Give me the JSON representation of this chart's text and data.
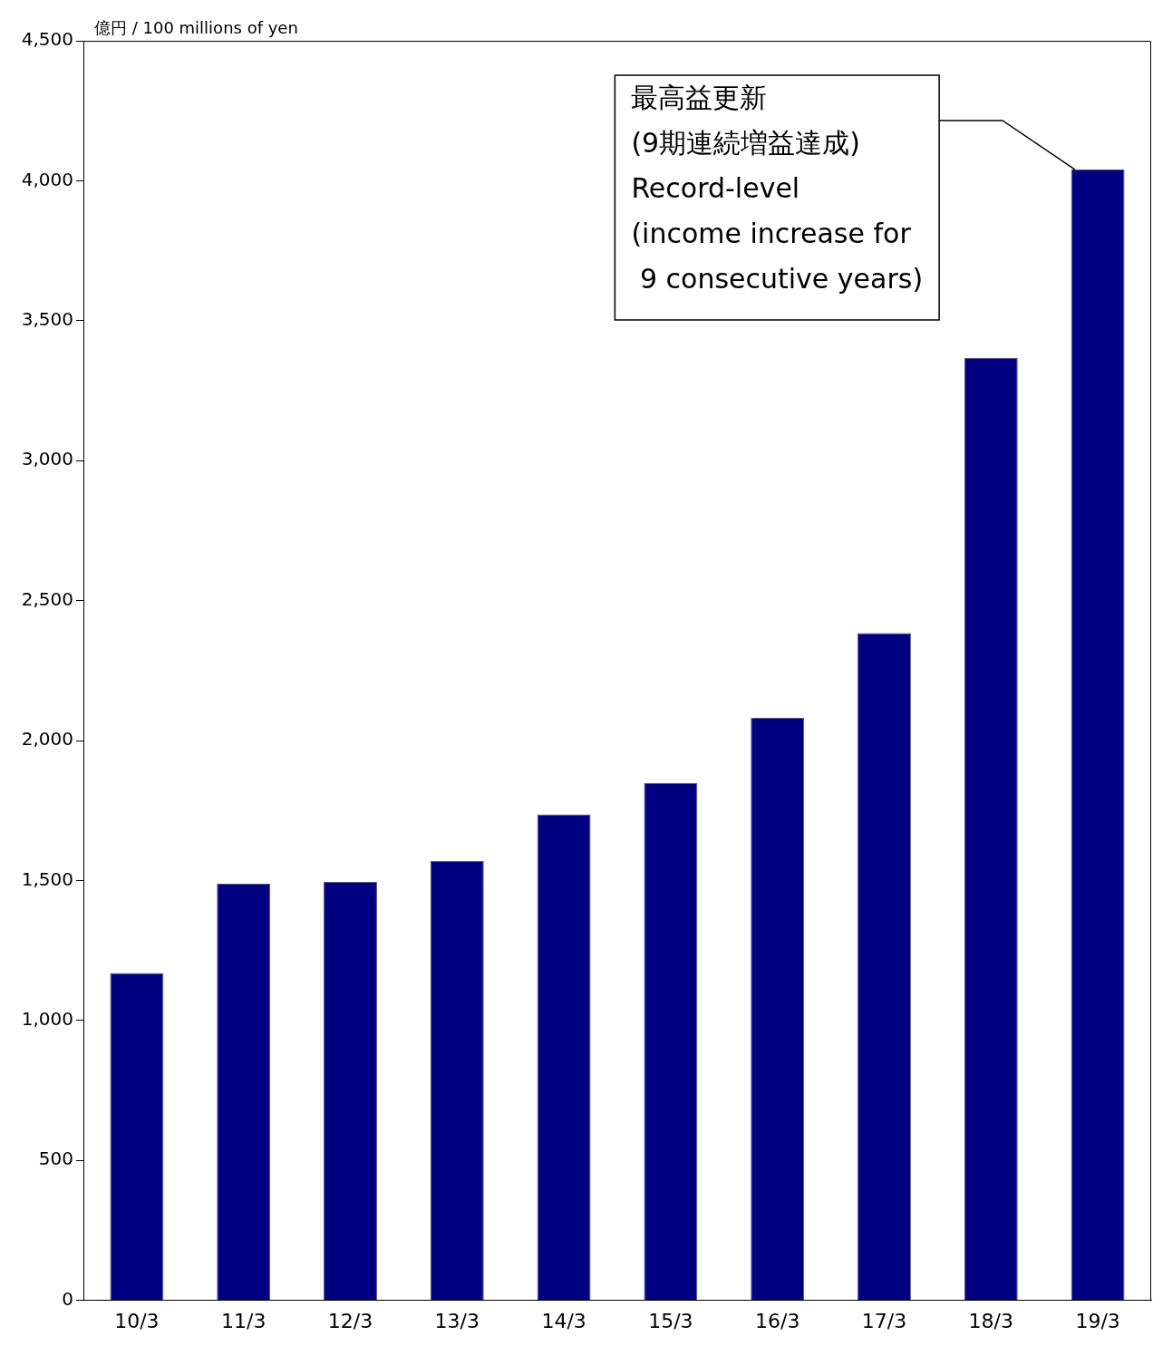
{
  "chart_data": {
    "type": "bar",
    "ylabel": "億円 / 100 millions of yen",
    "categories": [
      "10/3",
      "11/3",
      "12/3",
      "13/3",
      "14/3",
      "15/3",
      "16/3",
      "17/3",
      "18/3",
      "19/3"
    ],
    "values": [
      1169,
      1488,
      1495,
      1569,
      1736,
      1849,
      2081,
      2384,
      3367,
      4040
    ],
    "color": "#000080",
    "ylim": [
      0,
      4500
    ],
    "yticks": [
      0,
      500,
      {
        "value": 1000,
        "label": "1,000"
      },
      {
        "value": 1500,
        "label": "1,500"
      },
      {
        "value": 2000,
        "label": "2,000"
      },
      {
        "value": 2500,
        "label": "2,500"
      },
      {
        "value": 3000,
        "label": "3,000"
      },
      {
        "value": 3500,
        "label": "3,500"
      },
      {
        "value": 4000,
        "label": "4,000"
      },
      {
        "value": 4500,
        "label": "4,500"
      }
    ],
    "grid": false,
    "legend": false,
    "annotations": [
      "最高益更新\n(9期連続増益達成)\nRecord-level\n(income increase for\n 9 consecutive years)"
    ]
  }
}
